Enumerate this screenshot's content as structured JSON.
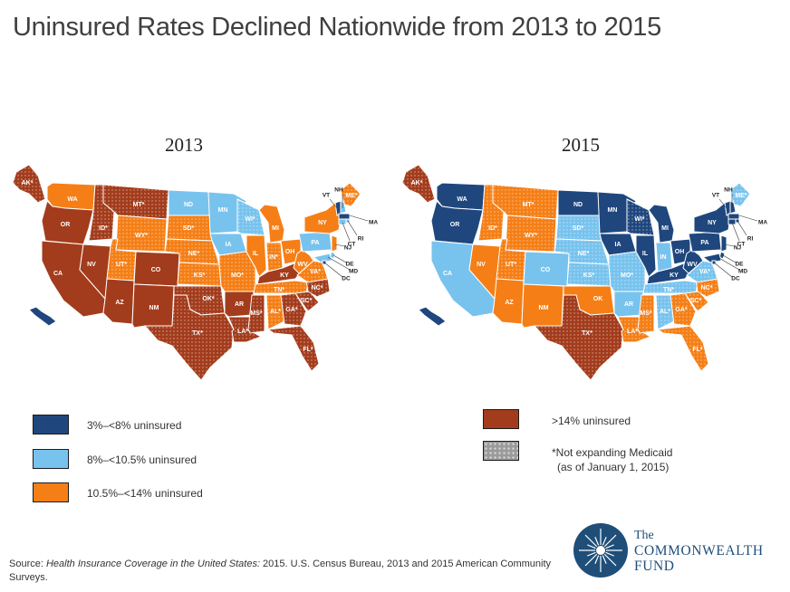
{
  "title": "Uninsured Rates Declined Nationwide from 2013 to 2015",
  "colors": {
    "dark_blue": "#1f477e",
    "light_blue": "#78c3ee",
    "orange": "#f57f16",
    "rust": "#a33c1c",
    "not_expanding_pattern": "#9b9b9b",
    "border": "#ffffff"
  },
  "maps": [
    {
      "year": "2013",
      "states": [
        {
          "id": "AK",
          "label": "AK*",
          "category": "rust",
          "not_expanding": true
        },
        {
          "id": "HI",
          "label": "HI",
          "category": "dark_blue",
          "not_expanding": false
        },
        {
          "id": "WA",
          "label": "WA",
          "category": "orange",
          "not_expanding": false
        },
        {
          "id": "OR",
          "label": "OR",
          "category": "rust",
          "not_expanding": false
        },
        {
          "id": "CA",
          "label": "CA",
          "category": "rust",
          "not_expanding": false
        },
        {
          "id": "NV",
          "label": "NV",
          "category": "rust",
          "not_expanding": false
        },
        {
          "id": "ID",
          "label": "ID*",
          "category": "rust",
          "not_expanding": true
        },
        {
          "id": "MT",
          "label": "MT*",
          "category": "rust",
          "not_expanding": true
        },
        {
          "id": "WY",
          "label": "WY*",
          "category": "orange",
          "not_expanding": true
        },
        {
          "id": "UT",
          "label": "UT*",
          "category": "orange",
          "not_expanding": true
        },
        {
          "id": "AZ",
          "label": "AZ",
          "category": "rust",
          "not_expanding": false
        },
        {
          "id": "CO",
          "label": "CO",
          "category": "rust",
          "not_expanding": false
        },
        {
          "id": "NM",
          "label": "NM",
          "category": "rust",
          "not_expanding": false
        },
        {
          "id": "ND",
          "label": "ND",
          "category": "light_blue",
          "not_expanding": false
        },
        {
          "id": "SD",
          "label": "SD*",
          "category": "orange",
          "not_expanding": true
        },
        {
          "id": "NE",
          "label": "NE*",
          "category": "orange",
          "not_expanding": true
        },
        {
          "id": "KS",
          "label": "KS*",
          "category": "orange",
          "not_expanding": true
        },
        {
          "id": "OK",
          "label": "OK*",
          "category": "rust",
          "not_expanding": true
        },
        {
          "id": "TX",
          "label": "TX*",
          "category": "rust",
          "not_expanding": true
        },
        {
          "id": "MN",
          "label": "MN",
          "category": "light_blue",
          "not_expanding": false
        },
        {
          "id": "IA",
          "label": "IA",
          "category": "light_blue",
          "not_expanding": false
        },
        {
          "id": "MO",
          "label": "MO*",
          "category": "orange",
          "not_expanding": true
        },
        {
          "id": "AR",
          "label": "AR",
          "category": "rust",
          "not_expanding": false
        },
        {
          "id": "LA",
          "label": "LA*",
          "category": "rust",
          "not_expanding": true
        },
        {
          "id": "WI",
          "label": "WI*",
          "category": "light_blue",
          "not_expanding": true
        },
        {
          "id": "IL",
          "label": "IL",
          "category": "orange",
          "not_expanding": false
        },
        {
          "id": "MI",
          "label": "MI",
          "category": "orange",
          "not_expanding": false
        },
        {
          "id": "IN",
          "label": "IN*",
          "category": "orange",
          "not_expanding": true
        },
        {
          "id": "OH",
          "label": "OH",
          "category": "orange",
          "not_expanding": false
        },
        {
          "id": "KY",
          "label": "KY",
          "category": "rust",
          "not_expanding": false
        },
        {
          "id": "TN",
          "label": "TN*",
          "category": "orange",
          "not_expanding": true
        },
        {
          "id": "MS",
          "label": "MS*",
          "category": "rust",
          "not_expanding": true
        },
        {
          "id": "AL",
          "label": "AL*",
          "category": "orange",
          "not_expanding": true
        },
        {
          "id": "GA",
          "label": "GA*",
          "category": "rust",
          "not_expanding": true
        },
        {
          "id": "FL",
          "label": "FL*",
          "category": "rust",
          "not_expanding": true
        },
        {
          "id": "SC",
          "label": "SC*",
          "category": "rust",
          "not_expanding": true
        },
        {
          "id": "NC",
          "label": "NC*",
          "category": "rust",
          "not_expanding": true
        },
        {
          "id": "VA",
          "label": "VA*",
          "category": "orange",
          "not_expanding": true
        },
        {
          "id": "WV",
          "label": "WV",
          "category": "orange",
          "not_expanding": false
        },
        {
          "id": "PA",
          "label": "PA",
          "category": "light_blue",
          "not_expanding": false
        },
        {
          "id": "NY",
          "label": "NY",
          "category": "orange",
          "not_expanding": false
        },
        {
          "id": "ME",
          "label": "ME*",
          "category": "orange",
          "not_expanding": true
        },
        {
          "id": "VT",
          "label": "VT",
          "category": "dark_blue",
          "not_expanding": false
        },
        {
          "id": "NH",
          "label": "NH",
          "category": "light_blue",
          "not_expanding": false
        },
        {
          "id": "MA",
          "label": "MA",
          "category": "dark_blue",
          "not_expanding": false
        },
        {
          "id": "RI",
          "label": "RI",
          "category": "light_blue",
          "not_expanding": false
        },
        {
          "id": "CT",
          "label": "CT",
          "category": "light_blue",
          "not_expanding": false
        },
        {
          "id": "NJ",
          "label": "NJ",
          "category": "orange",
          "not_expanding": false
        },
        {
          "id": "DE",
          "label": "DE",
          "category": "light_blue",
          "not_expanding": false
        },
        {
          "id": "MD",
          "label": "MD",
          "category": "light_blue",
          "not_expanding": false
        },
        {
          "id": "DC",
          "label": "DC",
          "category": "dark_blue",
          "not_expanding": false
        }
      ]
    },
    {
      "year": "2015",
      "states": [
        {
          "id": "AK",
          "label": "AK*",
          "category": "rust",
          "not_expanding": true
        },
        {
          "id": "HI",
          "label": "HI",
          "category": "dark_blue",
          "not_expanding": false
        },
        {
          "id": "WA",
          "label": "WA",
          "category": "dark_blue",
          "not_expanding": false
        },
        {
          "id": "OR",
          "label": "OR",
          "category": "dark_blue",
          "not_expanding": false
        },
        {
          "id": "CA",
          "label": "CA",
          "category": "light_blue",
          "not_expanding": false
        },
        {
          "id": "NV",
          "label": "NV",
          "category": "orange",
          "not_expanding": false
        },
        {
          "id": "ID",
          "label": "ID*",
          "category": "orange",
          "not_expanding": true
        },
        {
          "id": "MT",
          "label": "MT*",
          "category": "orange",
          "not_expanding": true
        },
        {
          "id": "WY",
          "label": "WY*",
          "category": "orange",
          "not_expanding": true
        },
        {
          "id": "UT",
          "label": "UT*",
          "category": "orange",
          "not_expanding": true
        },
        {
          "id": "AZ",
          "label": "AZ",
          "category": "orange",
          "not_expanding": false
        },
        {
          "id": "CO",
          "label": "CO",
          "category": "light_blue",
          "not_expanding": false
        },
        {
          "id": "NM",
          "label": "NM",
          "category": "orange",
          "not_expanding": false
        },
        {
          "id": "ND",
          "label": "ND",
          "category": "dark_blue",
          "not_expanding": false
        },
        {
          "id": "SD",
          "label": "SD*",
          "category": "light_blue",
          "not_expanding": true
        },
        {
          "id": "NE",
          "label": "NE*",
          "category": "light_blue",
          "not_expanding": true
        },
        {
          "id": "KS",
          "label": "KS*",
          "category": "light_blue",
          "not_expanding": true
        },
        {
          "id": "OK",
          "label": "OK",
          "category": "orange",
          "not_expanding": false
        },
        {
          "id": "TX",
          "label": "TX*",
          "category": "rust",
          "not_expanding": true
        },
        {
          "id": "MN",
          "label": "MN",
          "category": "dark_blue",
          "not_expanding": false
        },
        {
          "id": "IA",
          "label": "IA",
          "category": "dark_blue",
          "not_expanding": false
        },
        {
          "id": "MO",
          "label": "MO*",
          "category": "light_blue",
          "not_expanding": true
        },
        {
          "id": "AR",
          "label": "AR",
          "category": "light_blue",
          "not_expanding": false
        },
        {
          "id": "LA",
          "label": "LA*",
          "category": "orange",
          "not_expanding": true
        },
        {
          "id": "WI",
          "label": "WI*",
          "category": "dark_blue",
          "not_expanding": true
        },
        {
          "id": "IL",
          "label": "IL",
          "category": "dark_blue",
          "not_expanding": false
        },
        {
          "id": "MI",
          "label": "MI",
          "category": "dark_blue",
          "not_expanding": false
        },
        {
          "id": "IN",
          "label": "IN",
          "category": "light_blue",
          "not_expanding": false
        },
        {
          "id": "OH",
          "label": "OH",
          "category": "dark_blue",
          "not_expanding": false
        },
        {
          "id": "KY",
          "label": "KY",
          "category": "dark_blue",
          "not_expanding": false
        },
        {
          "id": "TN",
          "label": "TN*",
          "category": "light_blue",
          "not_expanding": true
        },
        {
          "id": "MS",
          "label": "MS*",
          "category": "orange",
          "not_expanding": true
        },
        {
          "id": "AL",
          "label": "AL*",
          "category": "light_blue",
          "not_expanding": true
        },
        {
          "id": "GA",
          "label": "GA*",
          "category": "orange",
          "not_expanding": true
        },
        {
          "id": "FL",
          "label": "FL*",
          "category": "orange",
          "not_expanding": true
        },
        {
          "id": "SC",
          "label": "SC*",
          "category": "orange",
          "not_expanding": true
        },
        {
          "id": "NC",
          "label": "NC*",
          "category": "orange",
          "not_expanding": true
        },
        {
          "id": "VA",
          "label": "VA*",
          "category": "light_blue",
          "not_expanding": true
        },
        {
          "id": "WV",
          "label": "WV",
          "category": "dark_blue",
          "not_expanding": false
        },
        {
          "id": "PA",
          "label": "PA",
          "category": "dark_blue",
          "not_expanding": false
        },
        {
          "id": "NY",
          "label": "NY",
          "category": "dark_blue",
          "not_expanding": false
        },
        {
          "id": "ME",
          "label": "ME*",
          "category": "light_blue",
          "not_expanding": true
        },
        {
          "id": "VT",
          "label": "VT",
          "category": "dark_blue",
          "not_expanding": false
        },
        {
          "id": "NH",
          "label": "NH",
          "category": "dark_blue",
          "not_expanding": false
        },
        {
          "id": "MA",
          "label": "MA",
          "category": "dark_blue",
          "not_expanding": false
        },
        {
          "id": "RI",
          "label": "RI",
          "category": "dark_blue",
          "not_expanding": false
        },
        {
          "id": "CT",
          "label": "CT",
          "category": "dark_blue",
          "not_expanding": false
        },
        {
          "id": "NJ",
          "label": "NJ",
          "category": "dark_blue",
          "not_expanding": false
        },
        {
          "id": "DE",
          "label": "DE",
          "category": "dark_blue",
          "not_expanding": false
        },
        {
          "id": "MD",
          "label": "MD",
          "category": "dark_blue",
          "not_expanding": false
        },
        {
          "id": "DC",
          "label": "DC",
          "category": "dark_blue",
          "not_expanding": false
        }
      ]
    }
  ],
  "legend": [
    {
      "key": "dark_blue",
      "label": "3%–<8% uninsured"
    },
    {
      "key": "light_blue",
      "label": "8%–<10.5% uninsured"
    },
    {
      "key": "orange",
      "label": "10.5%–<14% uninsured"
    },
    {
      "key": "rust",
      "label": ">14% uninsured"
    },
    {
      "key": "not_expanding",
      "label": "*Not expanding Medicaid",
      "sublabel": "(as of January 1, 2015)"
    }
  ],
  "source": {
    "prefix": "Source: ",
    "italic": "Health Insurance Coverage in the United States:",
    "rest": " 2015.  U.S. Census Bureau, 2013 and 2015 American Community Surveys."
  },
  "logo": {
    "the": "The",
    "line1": "COMMONWEALTH",
    "line2": "FUND"
  }
}
